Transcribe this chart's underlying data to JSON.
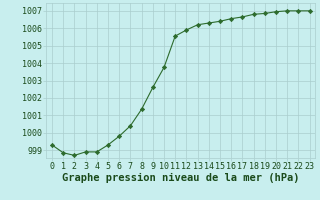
{
  "x": [
    0,
    1,
    2,
    3,
    4,
    5,
    6,
    7,
    8,
    9,
    10,
    11,
    12,
    13,
    14,
    15,
    16,
    17,
    18,
    19,
    20,
    21,
    22,
    23
  ],
  "y": [
    999.3,
    998.85,
    998.7,
    998.9,
    998.9,
    999.3,
    999.8,
    1000.4,
    1001.35,
    1002.6,
    1003.75,
    1005.55,
    1005.9,
    1006.2,
    1006.3,
    1006.4,
    1006.55,
    1006.65,
    1006.8,
    1006.85,
    1006.95,
    1007.0,
    1007.0,
    1007.0
  ],
  "line_color": "#2d6b2d",
  "marker": "D",
  "marker_size": 2.2,
  "bg_color": "#c8eeee",
  "grid_color": "#aacece",
  "ylabel_ticks": [
    999,
    1000,
    1001,
    1002,
    1003,
    1004,
    1005,
    1006,
    1007
  ],
  "xlabel_ticks": [
    0,
    1,
    2,
    3,
    4,
    5,
    6,
    7,
    8,
    9,
    10,
    11,
    12,
    13,
    14,
    15,
    16,
    17,
    18,
    19,
    20,
    21,
    22,
    23
  ],
  "ylim": [
    998.55,
    1007.45
  ],
  "xlim": [
    -0.5,
    23.5
  ],
  "xlabel": "Graphe pression niveau de la mer (hPa)",
  "xlabel_fontsize": 7.5,
  "tick_fontsize": 6.0,
  "label_color": "#1a4a1a"
}
